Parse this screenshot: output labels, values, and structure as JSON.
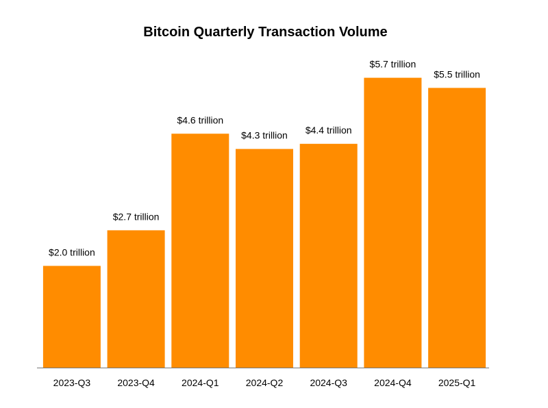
{
  "chart_data": {
    "type": "bar",
    "title": "Bitcoin Quarterly Transaction Volume",
    "xlabel": "",
    "ylabel": "",
    "categories": [
      "2023-Q3",
      "2023-Q4",
      "2024-Q1",
      "2024-Q2",
      "2024-Q3",
      "2024-Q4",
      "2025-Q1"
    ],
    "values": [
      2.0,
      2.7,
      4.6,
      4.3,
      4.4,
      5.7,
      5.5
    ],
    "data_labels": [
      "$2.0 trillion",
      "$2.7 trillion",
      "$4.6 trillion",
      "$4.3 trillion",
      "$4.4 trillion",
      "$5.7 trillion",
      "$5.5 trillion"
    ],
    "ylim": [
      0,
      5.95
    ],
    "grid": false,
    "legend": "none",
    "bar_color": "#ff8c00",
    "axis_color": "#777777"
  }
}
